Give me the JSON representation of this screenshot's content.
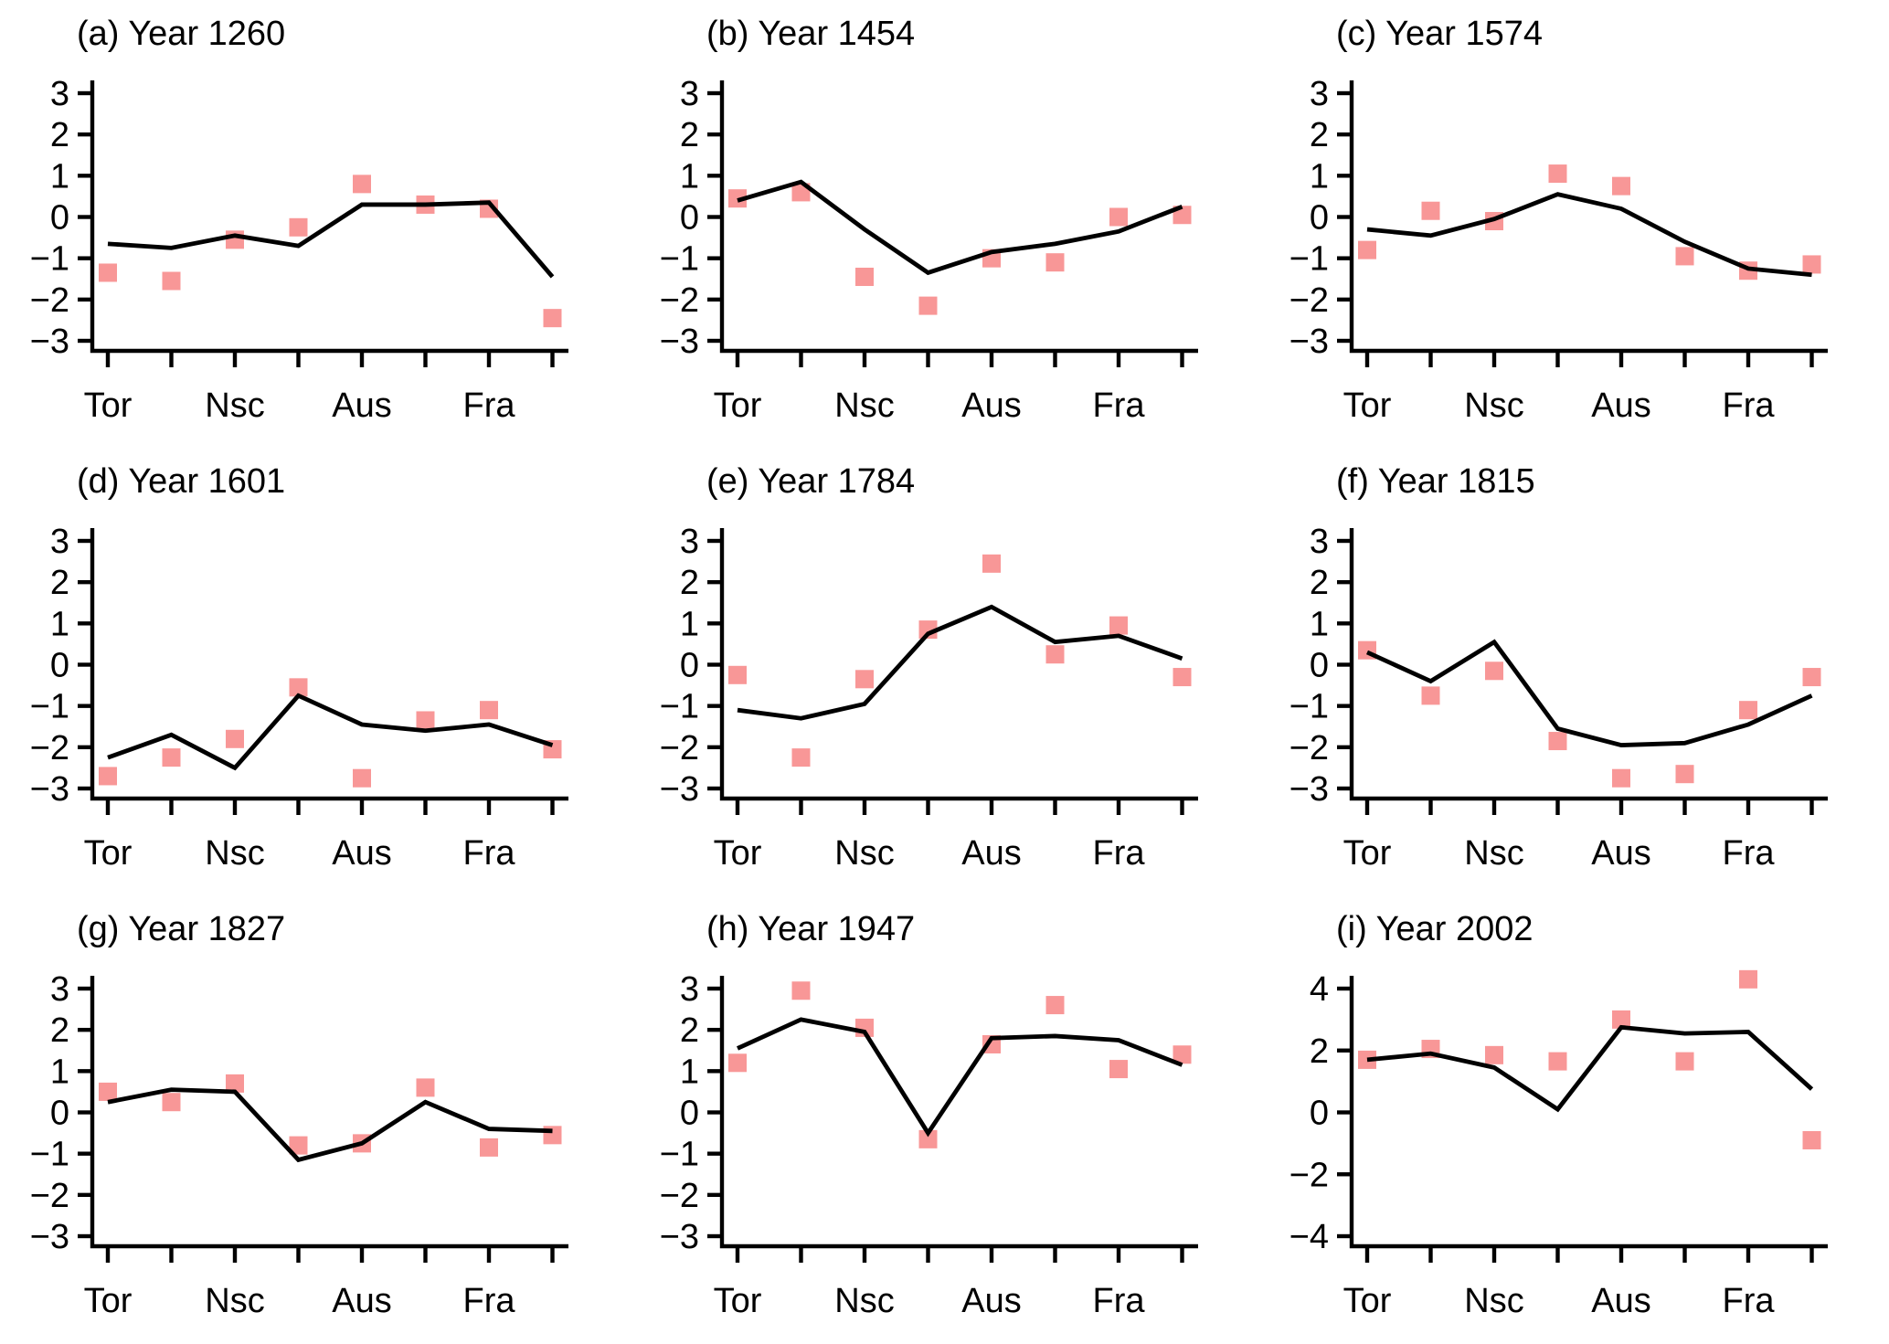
{
  "figure": {
    "background_color": "#ffffff",
    "axis_color": "#000000",
    "line_color": "#000000",
    "marker_color": "#f89797",
    "marker_shape": "filled-square",
    "x_axis_labels": [
      "Tor",
      "Nsc",
      "Aus",
      "Fra"
    ],
    "x_label_tick_indices": [
      0,
      2,
      4,
      6
    ],
    "x_points_per_panel": 8,
    "grid": false,
    "legend": "none"
  },
  "chart_data": [
    {
      "type": "line+scatter",
      "panel_label": "a",
      "title": "(a) Year 1260",
      "yticks": [
        3,
        2,
        1,
        0,
        -1,
        -2,
        -3
      ],
      "ylim": [
        -3,
        3
      ],
      "series": [
        {
          "name": "line-series",
          "type": "line",
          "values": [
            -0.65,
            -0.75,
            -0.45,
            -0.7,
            0.3,
            0.3,
            0.35,
            -1.45
          ]
        },
        {
          "name": "square-markers",
          "type": "scatter",
          "values": [
            -1.35,
            -1.55,
            -0.55,
            -0.25,
            0.8,
            0.3,
            0.2,
            -2.45
          ]
        }
      ]
    },
    {
      "type": "line+scatter",
      "panel_label": "b",
      "title": "(b) Year 1454",
      "yticks": [
        3,
        2,
        1,
        0,
        -1,
        -2,
        -3
      ],
      "ylim": [
        -3,
        3
      ],
      "series": [
        {
          "name": "line-series",
          "type": "line",
          "values": [
            0.4,
            0.85,
            -0.3,
            -1.35,
            -0.85,
            -0.65,
            -0.35,
            0.25
          ]
        },
        {
          "name": "square-markers",
          "type": "scatter",
          "values": [
            0.45,
            0.6,
            -1.45,
            -2.15,
            -1.0,
            -1.1,
            0.0,
            0.05
          ]
        }
      ]
    },
    {
      "type": "line+scatter",
      "panel_label": "c",
      "title": "(c) Year 1574",
      "yticks": [
        3,
        2,
        1,
        0,
        -1,
        -2,
        -3
      ],
      "ylim": [
        -3,
        3
      ],
      "series": [
        {
          "name": "line-series",
          "type": "line",
          "values": [
            -0.3,
            -0.45,
            -0.05,
            0.55,
            0.2,
            -0.6,
            -1.25,
            -1.4
          ]
        },
        {
          "name": "square-markers",
          "type": "scatter",
          "values": [
            -0.8,
            0.15,
            -0.1,
            1.05,
            0.75,
            -0.95,
            -1.3,
            -1.15
          ]
        }
      ]
    },
    {
      "type": "line+scatter",
      "panel_label": "d",
      "title": "(d) Year 1601",
      "yticks": [
        3,
        2,
        1,
        0,
        -1,
        -2,
        -3
      ],
      "ylim": [
        -3,
        3
      ],
      "series": [
        {
          "name": "line-series",
          "type": "line",
          "values": [
            -2.25,
            -1.7,
            -2.5,
            -0.75,
            -1.45,
            -1.6,
            -1.45,
            -1.95
          ]
        },
        {
          "name": "square-markers",
          "type": "scatter",
          "values": [
            -2.7,
            -2.25,
            -1.8,
            -0.55,
            -2.75,
            -1.35,
            -1.1,
            -2.05
          ]
        }
      ]
    },
    {
      "type": "line+scatter",
      "panel_label": "e",
      "title": "(e) Year 1784",
      "yticks": [
        3,
        2,
        1,
        0,
        -1,
        -2,
        -3
      ],
      "ylim": [
        -3,
        3
      ],
      "series": [
        {
          "name": "line-series",
          "type": "line",
          "values": [
            -1.1,
            -1.3,
            -0.95,
            0.75,
            1.4,
            0.55,
            0.7,
            0.15
          ]
        },
        {
          "name": "square-markers",
          "type": "scatter",
          "values": [
            -0.25,
            -2.25,
            -0.35,
            0.85,
            2.45,
            0.25,
            0.95,
            -0.3
          ]
        }
      ]
    },
    {
      "type": "line+scatter",
      "panel_label": "f",
      "title": "(f) Year 1815",
      "yticks": [
        3,
        2,
        1,
        0,
        -1,
        -2,
        -3
      ],
      "ylim": [
        -3,
        3
      ],
      "series": [
        {
          "name": "line-series",
          "type": "line",
          "values": [
            0.3,
            -0.4,
            0.55,
            -1.55,
            -1.95,
            -1.9,
            -1.45,
            -0.75
          ]
        },
        {
          "name": "square-markers",
          "type": "scatter",
          "values": [
            0.35,
            -0.75,
            -0.15,
            -1.85,
            -2.75,
            -2.65,
            -1.1,
            -0.3
          ]
        }
      ]
    },
    {
      "type": "line+scatter",
      "panel_label": "g",
      "title": "(g) Year 1827",
      "yticks": [
        3,
        2,
        1,
        0,
        -1,
        -2,
        -3
      ],
      "ylim": [
        -3,
        3
      ],
      "series": [
        {
          "name": "line-series",
          "type": "line",
          "values": [
            0.25,
            0.55,
            0.5,
            -1.15,
            -0.75,
            0.25,
            -0.4,
            -0.45
          ]
        },
        {
          "name": "square-markers",
          "type": "scatter",
          "values": [
            0.5,
            0.25,
            0.7,
            -0.8,
            -0.75,
            0.6,
            -0.85,
            -0.55
          ]
        }
      ]
    },
    {
      "type": "line+scatter",
      "panel_label": "h",
      "title": "(h) Year 1947",
      "yticks": [
        3,
        2,
        1,
        0,
        -1,
        -2,
        -3
      ],
      "ylim": [
        -3,
        3
      ],
      "series": [
        {
          "name": "line-series",
          "type": "line",
          "values": [
            1.55,
            2.25,
            1.95,
            -0.5,
            1.8,
            1.85,
            1.75,
            1.15
          ]
        },
        {
          "name": "square-markers",
          "type": "scatter",
          "values": [
            1.2,
            2.95,
            2.05,
            -0.65,
            1.65,
            2.6,
            1.05,
            1.4
          ]
        }
      ]
    },
    {
      "type": "line+scatter",
      "panel_label": "i",
      "title": "(i) Year 2002",
      "yticks": [
        4,
        2,
        0,
        -2,
        -4
      ],
      "ylim": [
        -4,
        4
      ],
      "series": [
        {
          "name": "line-series",
          "type": "line",
          "values": [
            1.7,
            1.9,
            1.45,
            0.1,
            2.75,
            2.55,
            2.6,
            0.75
          ]
        },
        {
          "name": "square-markers",
          "type": "scatter",
          "values": [
            1.7,
            2.05,
            1.85,
            1.65,
            3.0,
            1.65,
            4.3,
            -0.9
          ]
        }
      ]
    }
  ]
}
